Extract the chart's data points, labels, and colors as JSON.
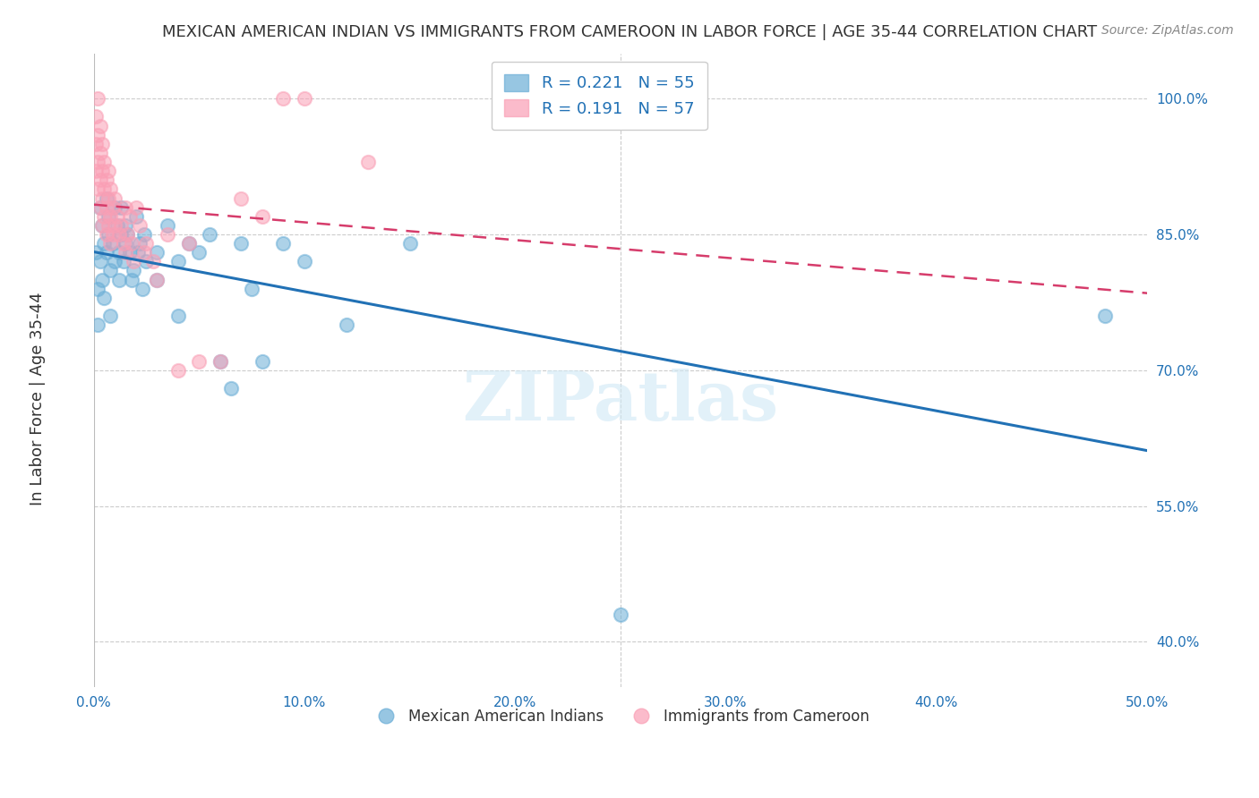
{
  "title": "MEXICAN AMERICAN INDIAN VS IMMIGRANTS FROM CAMEROON IN LABOR FORCE | AGE 35-44 CORRELATION CHART",
  "source": "Source: ZipAtlas.com",
  "xlabel_ticks": [
    "0.0%",
    "10.0%",
    "20.0%",
    "30.0%",
    "40.0%",
    "50.0%"
  ],
  "ylabel_ticks": [
    "40.0%",
    "55.0%",
    "70.0%",
    "85.0%",
    "100.0%"
  ],
  "ylabel_label": "In Labor Force | Age 35-44",
  "legend_blue_label": "Mexican American Indians",
  "legend_pink_label": "Immigrants from Cameroon",
  "R_blue": 0.221,
  "N_blue": 55,
  "R_pink": 0.191,
  "N_pink": 57,
  "xlim": [
    0.0,
    0.5
  ],
  "ylim": [
    0.35,
    1.05
  ],
  "blue_color": "#6baed6",
  "pink_color": "#fa9fb5",
  "blue_line_color": "#2171b5",
  "pink_line_color": "#d63c6b",
  "watermark": "ZIPatlas",
  "blue_scatter": [
    [
      0.001,
      0.83
    ],
    [
      0.002,
      0.79
    ],
    [
      0.002,
      0.75
    ],
    [
      0.003,
      0.88
    ],
    [
      0.003,
      0.82
    ],
    [
      0.004,
      0.86
    ],
    [
      0.004,
      0.8
    ],
    [
      0.005,
      0.84
    ],
    [
      0.005,
      0.78
    ],
    [
      0.006,
      0.89
    ],
    [
      0.006,
      0.83
    ],
    [
      0.007,
      0.85
    ],
    [
      0.007,
      0.87
    ],
    [
      0.008,
      0.81
    ],
    [
      0.008,
      0.76
    ],
    [
      0.009,
      0.84
    ],
    [
      0.01,
      0.82
    ],
    [
      0.01,
      0.88
    ],
    [
      0.011,
      0.86
    ],
    [
      0.012,
      0.8
    ],
    [
      0.012,
      0.83
    ],
    [
      0.013,
      0.85
    ],
    [
      0.013,
      0.88
    ],
    [
      0.014,
      0.82
    ],
    [
      0.015,
      0.86
    ],
    [
      0.015,
      0.84
    ],
    [
      0.016,
      0.85
    ],
    [
      0.017,
      0.83
    ],
    [
      0.018,
      0.8
    ],
    [
      0.019,
      0.81
    ],
    [
      0.02,
      0.87
    ],
    [
      0.021,
      0.83
    ],
    [
      0.022,
      0.84
    ],
    [
      0.023,
      0.79
    ],
    [
      0.024,
      0.85
    ],
    [
      0.025,
      0.82
    ],
    [
      0.03,
      0.8
    ],
    [
      0.03,
      0.83
    ],
    [
      0.035,
      0.86
    ],
    [
      0.04,
      0.82
    ],
    [
      0.04,
      0.76
    ],
    [
      0.045,
      0.84
    ],
    [
      0.05,
      0.83
    ],
    [
      0.055,
      0.85
    ],
    [
      0.06,
      0.71
    ],
    [
      0.065,
      0.68
    ],
    [
      0.07,
      0.84
    ],
    [
      0.075,
      0.79
    ],
    [
      0.08,
      0.71
    ],
    [
      0.09,
      0.84
    ],
    [
      0.1,
      0.82
    ],
    [
      0.12,
      0.75
    ],
    [
      0.15,
      0.84
    ],
    [
      0.25,
      0.43
    ],
    [
      0.48,
      0.76
    ]
  ],
  "pink_scatter": [
    [
      0.001,
      0.98
    ],
    [
      0.001,
      0.95
    ],
    [
      0.001,
      0.92
    ],
    [
      0.002,
      1.0
    ],
    [
      0.002,
      0.96
    ],
    [
      0.002,
      0.93
    ],
    [
      0.002,
      0.9
    ],
    [
      0.003,
      0.97
    ],
    [
      0.003,
      0.94
    ],
    [
      0.003,
      0.91
    ],
    [
      0.003,
      0.88
    ],
    [
      0.004,
      0.95
    ],
    [
      0.004,
      0.92
    ],
    [
      0.004,
      0.89
    ],
    [
      0.004,
      0.86
    ],
    [
      0.005,
      0.93
    ],
    [
      0.005,
      0.9
    ],
    [
      0.005,
      0.87
    ],
    [
      0.006,
      0.91
    ],
    [
      0.006,
      0.88
    ],
    [
      0.006,
      0.85
    ],
    [
      0.007,
      0.92
    ],
    [
      0.007,
      0.89
    ],
    [
      0.007,
      0.86
    ],
    [
      0.008,
      0.9
    ],
    [
      0.008,
      0.87
    ],
    [
      0.008,
      0.84
    ],
    [
      0.009,
      0.88
    ],
    [
      0.009,
      0.85
    ],
    [
      0.01,
      0.89
    ],
    [
      0.01,
      0.86
    ],
    [
      0.011,
      0.87
    ],
    [
      0.012,
      0.85
    ],
    [
      0.013,
      0.86
    ],
    [
      0.014,
      0.84
    ],
    [
      0.015,
      0.88
    ],
    [
      0.015,
      0.83
    ],
    [
      0.016,
      0.85
    ],
    [
      0.017,
      0.87
    ],
    [
      0.018,
      0.84
    ],
    [
      0.019,
      0.82
    ],
    [
      0.02,
      0.88
    ],
    [
      0.022,
      0.86
    ],
    [
      0.024,
      0.83
    ],
    [
      0.025,
      0.84
    ],
    [
      0.028,
      0.82
    ],
    [
      0.03,
      0.8
    ],
    [
      0.035,
      0.85
    ],
    [
      0.04,
      0.7
    ],
    [
      0.045,
      0.84
    ],
    [
      0.05,
      0.71
    ],
    [
      0.06,
      0.71
    ],
    [
      0.07,
      0.89
    ],
    [
      0.08,
      0.87
    ],
    [
      0.09,
      1.0
    ],
    [
      0.1,
      1.0
    ],
    [
      0.13,
      0.93
    ]
  ]
}
